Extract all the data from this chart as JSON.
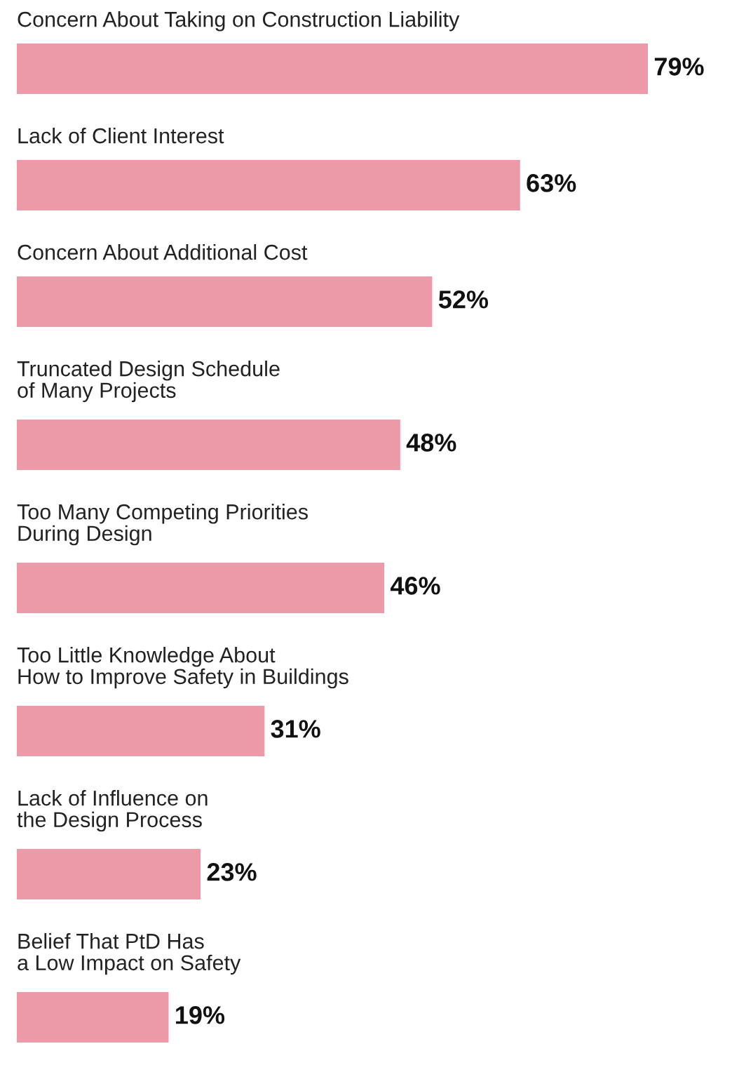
{
  "chart_data": {
    "type": "bar",
    "orientation": "horizontal",
    "categories": [
      "Concern About Taking on Construction Liability",
      "Lack of Client Interest",
      "Concern About Additional Cost",
      "Truncated Design Schedule\nof Many Projects",
      "Too Many Competing Priorities\nDuring Design",
      "Too Little Knowledge About\nHow to Improve Safety in Buildings",
      "Lack of Influence on\nthe Design Process",
      "Belief That PtD Has\na Low Impact on Safety"
    ],
    "values": [
      79,
      63,
      52,
      48,
      46,
      31,
      23,
      19
    ],
    "value_labels": [
      "79%",
      "63%",
      "52%",
      "48%",
      "46%",
      "31%",
      "23%",
      "19%"
    ],
    "color": "#ec9aa8"
  }
}
